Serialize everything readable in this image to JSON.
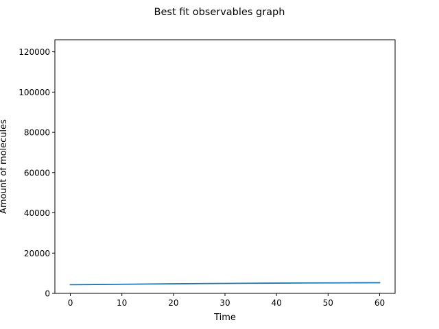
{
  "chart_data": {
    "type": "line",
    "title": "Best fit observables graph",
    "xlabel": "Time",
    "ylabel": "Amount of molecules",
    "xlim": [
      -3,
      63
    ],
    "ylim": [
      0,
      126000
    ],
    "xticks": [
      0,
      10,
      20,
      30,
      40,
      50,
      60
    ],
    "xtick_labels": [
      "0",
      "10",
      "20",
      "30",
      "40",
      "50",
      "60"
    ],
    "yticks": [
      0,
      20000,
      40000,
      60000,
      80000,
      100000,
      120000
    ],
    "ytick_labels": [
      "0",
      "20000",
      "40000",
      "60000",
      "80000",
      "100000",
      "120000"
    ],
    "grid": false,
    "legend": "none",
    "series": [
      {
        "color": "#1f77b4",
        "x": [
          0,
          5,
          10,
          15,
          20,
          25,
          30,
          35,
          40,
          45,
          50,
          55,
          60
        ],
        "values": [
          4300,
          4400,
          4520,
          4640,
          4750,
          4850,
          4940,
          5020,
          5090,
          5150,
          5200,
          5250,
          5300
        ]
      }
    ]
  }
}
